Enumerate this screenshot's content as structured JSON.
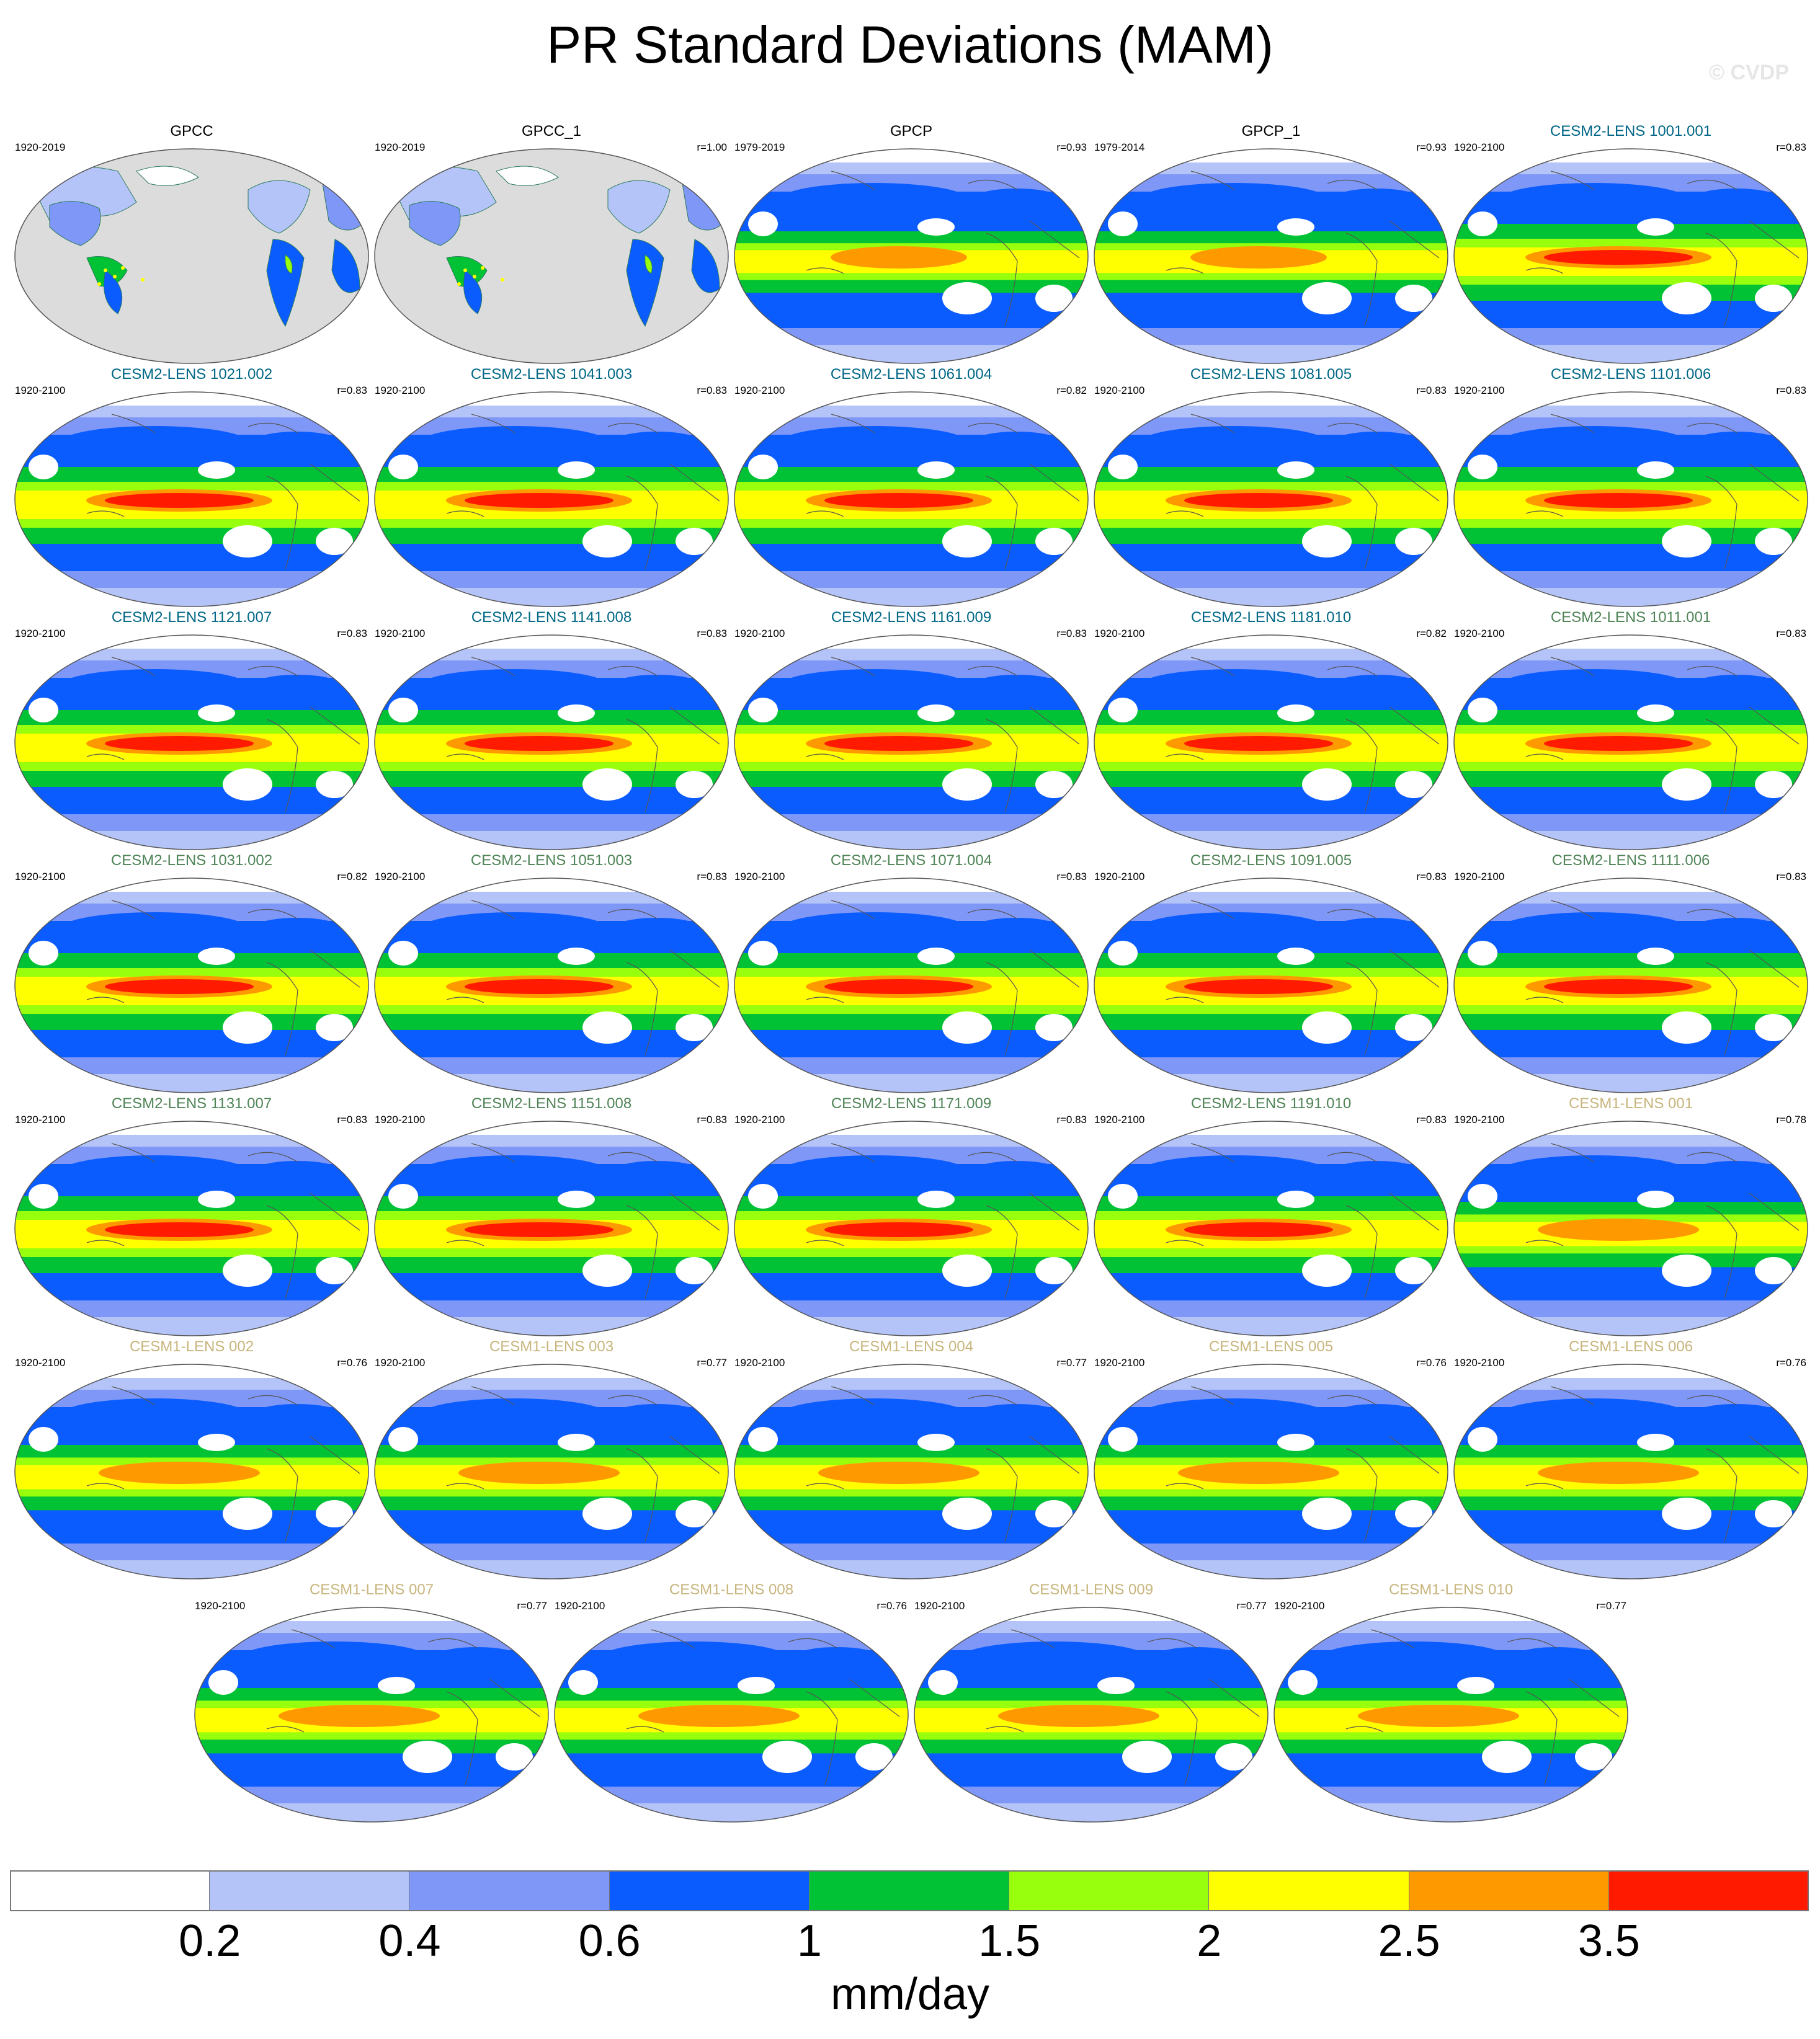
{
  "title": "PR Standard Deviations (MAM)",
  "watermark": "© CVDP",
  "colorbar": {
    "units": "mm/day",
    "ticks": [
      "0.2",
      "0.4",
      "0.6",
      "1",
      "1.5",
      "2",
      "2.5",
      "3.5"
    ],
    "colors": [
      "#ffffff",
      "#b4c4f8",
      "#7f97f7",
      "#0b5cff",
      "#00c234",
      "#98ff0c",
      "#ffff00",
      "#ff9900",
      "#ff1a00"
    ]
  },
  "colors": {
    "obs_title": "#000000",
    "cesm2_1001_title": "#006786",
    "cesm2_1011_title": "#4f8457",
    "cesm1_title": "#c8b57d",
    "land": "#dcdcdc"
  },
  "panels": [
    {
      "title": "GPCC",
      "period": "1920-2019",
      "corr": "",
      "group": "obs",
      "style": "land"
    },
    {
      "title": "GPCC_1",
      "period": "1920-2019",
      "corr": "r=1.00",
      "group": "obs",
      "style": "land"
    },
    {
      "title": "GPCP",
      "period": "1979-2019",
      "corr": "r=0.93",
      "group": "obs",
      "style": "gpcp"
    },
    {
      "title": "GPCP_1",
      "period": "1979-2014",
      "corr": "r=0.93",
      "group": "obs",
      "style": "gpcp"
    },
    {
      "title": "CESM2-LENS 1001.001",
      "period": "1920-2100",
      "corr": "r=0.83",
      "group": "cesm2a",
      "style": "cesm2"
    },
    {
      "title": "CESM2-LENS 1021.002",
      "period": "1920-2100",
      "corr": "r=0.83",
      "group": "cesm2a",
      "style": "cesm2"
    },
    {
      "title": "CESM2-LENS 1041.003",
      "period": "1920-2100",
      "corr": "r=0.83",
      "group": "cesm2a",
      "style": "cesm2"
    },
    {
      "title": "CESM2-LENS 1061.004",
      "period": "1920-2100",
      "corr": "r=0.82",
      "group": "cesm2a",
      "style": "cesm2"
    },
    {
      "title": "CESM2-LENS 1081.005",
      "period": "1920-2100",
      "corr": "r=0.83",
      "group": "cesm2a",
      "style": "cesm2"
    },
    {
      "title": "CESM2-LENS 1101.006",
      "period": "1920-2100",
      "corr": "r=0.83",
      "group": "cesm2a",
      "style": "cesm2"
    },
    {
      "title": "CESM2-LENS 1121.007",
      "period": "1920-2100",
      "corr": "r=0.83",
      "group": "cesm2a",
      "style": "cesm2"
    },
    {
      "title": "CESM2-LENS 1141.008",
      "period": "1920-2100",
      "corr": "r=0.83",
      "group": "cesm2a",
      "style": "cesm2"
    },
    {
      "title": "CESM2-LENS 1161.009",
      "period": "1920-2100",
      "corr": "r=0.83",
      "group": "cesm2a",
      "style": "cesm2"
    },
    {
      "title": "CESM2-LENS 1181.010",
      "period": "1920-2100",
      "corr": "r=0.82",
      "group": "cesm2a",
      "style": "cesm2"
    },
    {
      "title": "CESM2-LENS 1011.001",
      "period": "1920-2100",
      "corr": "r=0.83",
      "group": "cesm2b",
      "style": "cesm2"
    },
    {
      "title": "CESM2-LENS 1031.002",
      "period": "1920-2100",
      "corr": "r=0.82",
      "group": "cesm2b",
      "style": "cesm2"
    },
    {
      "title": "CESM2-LENS 1051.003",
      "period": "1920-2100",
      "corr": "r=0.83",
      "group": "cesm2b",
      "style": "cesm2"
    },
    {
      "title": "CESM2-LENS 1071.004",
      "period": "1920-2100",
      "corr": "r=0.83",
      "group": "cesm2b",
      "style": "cesm2"
    },
    {
      "title": "CESM2-LENS 1091.005",
      "period": "1920-2100",
      "corr": "r=0.83",
      "group": "cesm2b",
      "style": "cesm2"
    },
    {
      "title": "CESM2-LENS 1111.006",
      "period": "1920-2100",
      "corr": "r=0.83",
      "group": "cesm2b",
      "style": "cesm2"
    },
    {
      "title": "CESM2-LENS 1131.007",
      "period": "1920-2100",
      "corr": "r=0.83",
      "group": "cesm2b",
      "style": "cesm2"
    },
    {
      "title": "CESM2-LENS 1151.008",
      "period": "1920-2100",
      "corr": "r=0.83",
      "group": "cesm2b",
      "style": "cesm2"
    },
    {
      "title": "CESM2-LENS 1171.009",
      "period": "1920-2100",
      "corr": "r=0.83",
      "group": "cesm2b",
      "style": "cesm2"
    },
    {
      "title": "CESM2-LENS 1191.010",
      "period": "1920-2100",
      "corr": "r=0.83",
      "group": "cesm2b",
      "style": "cesm2"
    },
    {
      "title": "CESM1-LENS 001",
      "period": "1920-2100",
      "corr": "r=0.78",
      "group": "cesm1",
      "style": "cesm1"
    },
    {
      "title": "CESM1-LENS 002",
      "period": "1920-2100",
      "corr": "r=0.76",
      "group": "cesm1",
      "style": "cesm1"
    },
    {
      "title": "CESM1-LENS 003",
      "period": "1920-2100",
      "corr": "r=0.77",
      "group": "cesm1",
      "style": "cesm1"
    },
    {
      "title": "CESM1-LENS 004",
      "period": "1920-2100",
      "corr": "r=0.77",
      "group": "cesm1",
      "style": "cesm1"
    },
    {
      "title": "CESM1-LENS 005",
      "period": "1920-2100",
      "corr": "r=0.76",
      "group": "cesm1",
      "style": "cesm1"
    },
    {
      "title": "CESM1-LENS 006",
      "period": "1920-2100",
      "corr": "r=0.76",
      "group": "cesm1",
      "style": "cesm1"
    },
    {
      "title": "CESM1-LENS 007",
      "period": "1920-2100",
      "corr": "r=0.77",
      "group": "cesm1",
      "style": "cesm1"
    },
    {
      "title": "CESM1-LENS 008",
      "period": "1920-2100",
      "corr": "r=0.76",
      "group": "cesm1",
      "style": "cesm1"
    },
    {
      "title": "CESM1-LENS 009",
      "period": "1920-2100",
      "corr": "r=0.77",
      "group": "cesm1",
      "style": "cesm1"
    },
    {
      "title": "CESM1-LENS 010",
      "period": "1920-2100",
      "corr": "r=0.77",
      "group": "cesm1",
      "style": "cesm1"
    }
  ]
}
